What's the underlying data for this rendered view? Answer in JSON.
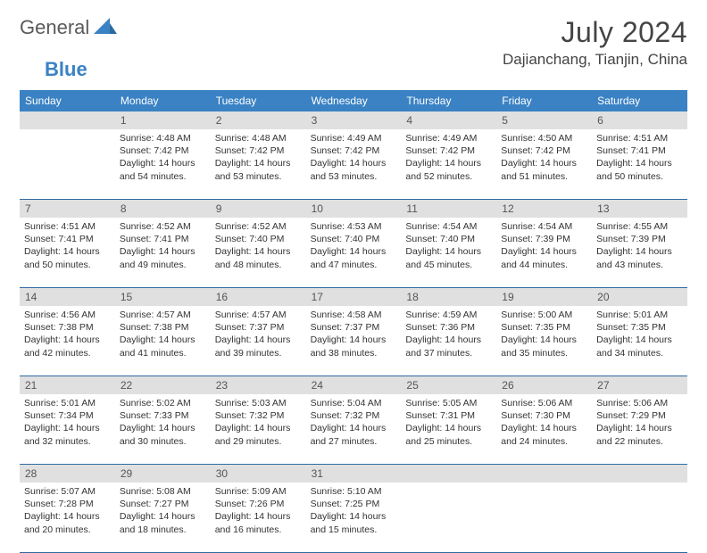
{
  "brand": {
    "part1": "General",
    "part2": "Blue"
  },
  "month_title": "July 2024",
  "location": "Dajianchang, Tianjin, China",
  "colors": {
    "header_bg": "#3a82c4",
    "header_text": "#ffffff",
    "daynum_bg": "#e0e0e0",
    "border": "#2e6aa0",
    "text": "#333333",
    "title": "#444444"
  },
  "weekdays": [
    "Sunday",
    "Monday",
    "Tuesday",
    "Wednesday",
    "Thursday",
    "Friday",
    "Saturday"
  ],
  "weeks": [
    [
      {
        "num": "",
        "lines": []
      },
      {
        "num": "1",
        "lines": [
          "Sunrise: 4:48 AM",
          "Sunset: 7:42 PM",
          "Daylight: 14 hours",
          "and 54 minutes."
        ]
      },
      {
        "num": "2",
        "lines": [
          "Sunrise: 4:48 AM",
          "Sunset: 7:42 PM",
          "Daylight: 14 hours",
          "and 53 minutes."
        ]
      },
      {
        "num": "3",
        "lines": [
          "Sunrise: 4:49 AM",
          "Sunset: 7:42 PM",
          "Daylight: 14 hours",
          "and 53 minutes."
        ]
      },
      {
        "num": "4",
        "lines": [
          "Sunrise: 4:49 AM",
          "Sunset: 7:42 PM",
          "Daylight: 14 hours",
          "and 52 minutes."
        ]
      },
      {
        "num": "5",
        "lines": [
          "Sunrise: 4:50 AM",
          "Sunset: 7:42 PM",
          "Daylight: 14 hours",
          "and 51 minutes."
        ]
      },
      {
        "num": "6",
        "lines": [
          "Sunrise: 4:51 AM",
          "Sunset: 7:41 PM",
          "Daylight: 14 hours",
          "and 50 minutes."
        ]
      }
    ],
    [
      {
        "num": "7",
        "lines": [
          "Sunrise: 4:51 AM",
          "Sunset: 7:41 PM",
          "Daylight: 14 hours",
          "and 50 minutes."
        ]
      },
      {
        "num": "8",
        "lines": [
          "Sunrise: 4:52 AM",
          "Sunset: 7:41 PM",
          "Daylight: 14 hours",
          "and 49 minutes."
        ]
      },
      {
        "num": "9",
        "lines": [
          "Sunrise: 4:52 AM",
          "Sunset: 7:40 PM",
          "Daylight: 14 hours",
          "and 48 minutes."
        ]
      },
      {
        "num": "10",
        "lines": [
          "Sunrise: 4:53 AM",
          "Sunset: 7:40 PM",
          "Daylight: 14 hours",
          "and 47 minutes."
        ]
      },
      {
        "num": "11",
        "lines": [
          "Sunrise: 4:54 AM",
          "Sunset: 7:40 PM",
          "Daylight: 14 hours",
          "and 45 minutes."
        ]
      },
      {
        "num": "12",
        "lines": [
          "Sunrise: 4:54 AM",
          "Sunset: 7:39 PM",
          "Daylight: 14 hours",
          "and 44 minutes."
        ]
      },
      {
        "num": "13",
        "lines": [
          "Sunrise: 4:55 AM",
          "Sunset: 7:39 PM",
          "Daylight: 14 hours",
          "and 43 minutes."
        ]
      }
    ],
    [
      {
        "num": "14",
        "lines": [
          "Sunrise: 4:56 AM",
          "Sunset: 7:38 PM",
          "Daylight: 14 hours",
          "and 42 minutes."
        ]
      },
      {
        "num": "15",
        "lines": [
          "Sunrise: 4:57 AM",
          "Sunset: 7:38 PM",
          "Daylight: 14 hours",
          "and 41 minutes."
        ]
      },
      {
        "num": "16",
        "lines": [
          "Sunrise: 4:57 AM",
          "Sunset: 7:37 PM",
          "Daylight: 14 hours",
          "and 39 minutes."
        ]
      },
      {
        "num": "17",
        "lines": [
          "Sunrise: 4:58 AM",
          "Sunset: 7:37 PM",
          "Daylight: 14 hours",
          "and 38 minutes."
        ]
      },
      {
        "num": "18",
        "lines": [
          "Sunrise: 4:59 AM",
          "Sunset: 7:36 PM",
          "Daylight: 14 hours",
          "and 37 minutes."
        ]
      },
      {
        "num": "19",
        "lines": [
          "Sunrise: 5:00 AM",
          "Sunset: 7:35 PM",
          "Daylight: 14 hours",
          "and 35 minutes."
        ]
      },
      {
        "num": "20",
        "lines": [
          "Sunrise: 5:01 AM",
          "Sunset: 7:35 PM",
          "Daylight: 14 hours",
          "and 34 minutes."
        ]
      }
    ],
    [
      {
        "num": "21",
        "lines": [
          "Sunrise: 5:01 AM",
          "Sunset: 7:34 PM",
          "Daylight: 14 hours",
          "and 32 minutes."
        ]
      },
      {
        "num": "22",
        "lines": [
          "Sunrise: 5:02 AM",
          "Sunset: 7:33 PM",
          "Daylight: 14 hours",
          "and 30 minutes."
        ]
      },
      {
        "num": "23",
        "lines": [
          "Sunrise: 5:03 AM",
          "Sunset: 7:32 PM",
          "Daylight: 14 hours",
          "and 29 minutes."
        ]
      },
      {
        "num": "24",
        "lines": [
          "Sunrise: 5:04 AM",
          "Sunset: 7:32 PM",
          "Daylight: 14 hours",
          "and 27 minutes."
        ]
      },
      {
        "num": "25",
        "lines": [
          "Sunrise: 5:05 AM",
          "Sunset: 7:31 PM",
          "Daylight: 14 hours",
          "and 25 minutes."
        ]
      },
      {
        "num": "26",
        "lines": [
          "Sunrise: 5:06 AM",
          "Sunset: 7:30 PM",
          "Daylight: 14 hours",
          "and 24 minutes."
        ]
      },
      {
        "num": "27",
        "lines": [
          "Sunrise: 5:06 AM",
          "Sunset: 7:29 PM",
          "Daylight: 14 hours",
          "and 22 minutes."
        ]
      }
    ],
    [
      {
        "num": "28",
        "lines": [
          "Sunrise: 5:07 AM",
          "Sunset: 7:28 PM",
          "Daylight: 14 hours",
          "and 20 minutes."
        ]
      },
      {
        "num": "29",
        "lines": [
          "Sunrise: 5:08 AM",
          "Sunset: 7:27 PM",
          "Daylight: 14 hours",
          "and 18 minutes."
        ]
      },
      {
        "num": "30",
        "lines": [
          "Sunrise: 5:09 AM",
          "Sunset: 7:26 PM",
          "Daylight: 14 hours",
          "and 16 minutes."
        ]
      },
      {
        "num": "31",
        "lines": [
          "Sunrise: 5:10 AM",
          "Sunset: 7:25 PM",
          "Daylight: 14 hours",
          "and 15 minutes."
        ]
      },
      {
        "num": "",
        "lines": []
      },
      {
        "num": "",
        "lines": []
      },
      {
        "num": "",
        "lines": []
      }
    ]
  ]
}
